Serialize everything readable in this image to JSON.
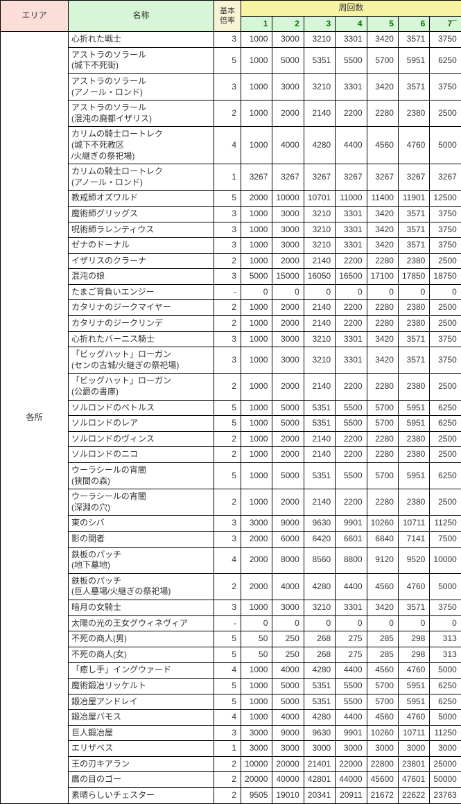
{
  "headers": {
    "area": "エリア",
    "name": "名称",
    "base": "基本\n倍率",
    "lap": "周回数",
    "laps": [
      "1",
      "2",
      "3",
      "4",
      "5",
      "6",
      "7¯"
    ]
  },
  "area_label": "各所",
  "colors": {
    "area_bg": "#fcded9",
    "name_bg": "#d6f6d7",
    "base_bg": "#f6f4d5",
    "lap_bg": "#f6f3a3",
    "lapn_bg": "#d6f6d7",
    "lapn_fg": "#0b6a02",
    "border": "#000000"
  },
  "rows": [
    {
      "name": "心折れた戦士",
      "base": "3",
      "v": [
        "1000",
        "3000",
        "3210",
        "3301",
        "3420",
        "3571",
        "3750"
      ]
    },
    {
      "name": "アストラのソラール\n(城下不死街)",
      "base": "5",
      "v": [
        "1000",
        "5000",
        "5351",
        "5500",
        "5700",
        "5951",
        "6250"
      ]
    },
    {
      "name": "アストラのソラール\n(アノール・ロンド)",
      "base": "3",
      "v": [
        "1000",
        "3000",
        "3210",
        "3301",
        "3420",
        "3571",
        "3750"
      ]
    },
    {
      "name": "アストラのソラール\n(混沌の廃都イザリス)",
      "base": "2",
      "v": [
        "1000",
        "2000",
        "2140",
        "2200",
        "2280",
        "2380",
        "2500"
      ]
    },
    {
      "name": "カリムの騎士ロートレク\n(城下不死教区\n/火継ぎの祭祀場)",
      "base": "4",
      "v": [
        "1000",
        "4000",
        "4280",
        "4400",
        "4560",
        "4760",
        "5000"
      ]
    },
    {
      "name": "カリムの騎士ロートレク\n(アノール・ロンド)",
      "base": "1",
      "v": [
        "3267",
        "3267",
        "3267",
        "3267",
        "3267",
        "3267",
        "3267"
      ]
    },
    {
      "name": "教戒師オズワルド",
      "base": "5",
      "v": [
        "2000",
        "10000",
        "10701",
        "11000",
        "11400",
        "11901",
        "12500"
      ]
    },
    {
      "name": "魔術師グリッグス",
      "base": "3",
      "v": [
        "1000",
        "3000",
        "3210",
        "3301",
        "3420",
        "3571",
        "3750"
      ]
    },
    {
      "name": "呪術師ラレンティウス",
      "base": "3",
      "v": [
        "1000",
        "3000",
        "3210",
        "3301",
        "3420",
        "3571",
        "3750"
      ]
    },
    {
      "name": "ゼナのドーナル",
      "base": "3",
      "v": [
        "1000",
        "3000",
        "3210",
        "3301",
        "3420",
        "3571",
        "3750"
      ]
    },
    {
      "name": "イザリスのクラーナ",
      "base": "2",
      "v": [
        "1000",
        "2000",
        "2140",
        "2200",
        "2280",
        "2380",
        "2500"
      ]
    },
    {
      "name": "混沌の娘",
      "base": "3",
      "v": [
        "5000",
        "15000",
        "16050",
        "16500",
        "17100",
        "17850",
        "18750"
      ]
    },
    {
      "name": "たまご背負いエンジー",
      "base": "-",
      "v": [
        "0",
        "0",
        "0",
        "0",
        "0",
        "0",
        "0"
      ]
    },
    {
      "name": "カタリナのジークマイヤー",
      "base": "2",
      "v": [
        "1000",
        "2000",
        "2140",
        "2200",
        "2280",
        "2380",
        "2500"
      ]
    },
    {
      "name": "カタリナのジークリンデ",
      "base": "2",
      "v": [
        "1000",
        "2000",
        "2140",
        "2200",
        "2280",
        "2380",
        "2500"
      ]
    },
    {
      "name": "心折れたバーニス騎士",
      "base": "3",
      "v": [
        "1000",
        "3000",
        "3210",
        "3301",
        "3420",
        "3571",
        "3750"
      ]
    },
    {
      "name": "「ビッグハット」ローガン\n(センの古城/火継ぎの祭祀場)",
      "base": "3",
      "v": [
        "1000",
        "3000",
        "3210",
        "3301",
        "3420",
        "3571",
        "3750"
      ]
    },
    {
      "name": "「ビッグハット」ローガン\n(公爵の書庫)",
      "base": "2",
      "v": [
        "1000",
        "2000",
        "2140",
        "2200",
        "2280",
        "2380",
        "2500"
      ]
    },
    {
      "name": "ソルロンドのペトルス",
      "base": "5",
      "v": [
        "1000",
        "5000",
        "5351",
        "5500",
        "5700",
        "5951",
        "6250"
      ]
    },
    {
      "name": "ソルロンドのレア",
      "base": "5",
      "v": [
        "1000",
        "5000",
        "5351",
        "5500",
        "5700",
        "5951",
        "6250"
      ]
    },
    {
      "name": "ソルロンドのヴィンス",
      "base": "2",
      "v": [
        "1000",
        "2000",
        "2140",
        "2200",
        "2280",
        "2380",
        "2500"
      ]
    },
    {
      "name": "ソルロンドのニコ",
      "base": "2",
      "v": [
        "1000",
        "2000",
        "2140",
        "2200",
        "2280",
        "2380",
        "2500"
      ]
    },
    {
      "name": "ウーラシールの宵闇\n(狭間の森)",
      "base": "5",
      "v": [
        "1000",
        "5000",
        "5351",
        "5500",
        "5700",
        "5951",
        "6250"
      ]
    },
    {
      "name": "ウーラシールの宵闇\n(深淵の穴)",
      "base": "2",
      "v": [
        "1000",
        "2000",
        "2140",
        "2200",
        "2280",
        "2380",
        "2500"
      ]
    },
    {
      "name": "東のシバ",
      "base": "3",
      "v": [
        "3000",
        "9000",
        "9630",
        "9901",
        "10260",
        "10711",
        "11250"
      ]
    },
    {
      "name": "影の間者",
      "base": "3",
      "v": [
        "2000",
        "6000",
        "6420",
        "6601",
        "6840",
        "7141",
        "7500"
      ]
    },
    {
      "name": "鉄板のパッチ\n(地下墓地)",
      "base": "4",
      "v": [
        "2000",
        "8000",
        "8560",
        "8800",
        "9120",
        "9520",
        "10000"
      ]
    },
    {
      "name": "鉄板のパッチ\n(巨人墓場/火継ぎの祭祀場)",
      "base": "2",
      "v": [
        "2000",
        "4000",
        "4280",
        "4400",
        "4560",
        "4760",
        "5000"
      ]
    },
    {
      "name": "暗月の女騎士",
      "base": "3",
      "v": [
        "1000",
        "3000",
        "3210",
        "3301",
        "3420",
        "3571",
        "3750"
      ]
    },
    {
      "name": "太陽の光の王女グウィネヴィア",
      "base": "-",
      "v": [
        "0",
        "0",
        "0",
        "0",
        "0",
        "0",
        "0"
      ]
    },
    {
      "name": "不死の商人(男)",
      "base": "5",
      "v": [
        "50",
        "250",
        "268",
        "275",
        "285",
        "298",
        "313"
      ]
    },
    {
      "name": "不死の商人(女)",
      "base": "5",
      "v": [
        "50",
        "250",
        "268",
        "275",
        "285",
        "298",
        "313"
      ]
    },
    {
      "name": "「癒し手」イングウァード",
      "base": "4",
      "v": [
        "1000",
        "4000",
        "4280",
        "4400",
        "4560",
        "4760",
        "5000"
      ]
    },
    {
      "name": "魔術鍛冶リッケルト",
      "base": "5",
      "v": [
        "1000",
        "5000",
        "5351",
        "5500",
        "5700",
        "5951",
        "6250"
      ]
    },
    {
      "name": "鍛冶屋アンドレイ",
      "base": "5",
      "v": [
        "1000",
        "5000",
        "5351",
        "5500",
        "5700",
        "5951",
        "6250"
      ]
    },
    {
      "name": "鍛冶屋バモス",
      "base": "4",
      "v": [
        "1000",
        "4000",
        "4280",
        "4400",
        "4560",
        "4760",
        "5000"
      ]
    },
    {
      "name": "巨人鍛冶屋",
      "base": "3",
      "v": [
        "3000",
        "9000",
        "9630",
        "9901",
        "10260",
        "10711",
        "11250"
      ]
    },
    {
      "name": "エリザベス",
      "base": "1",
      "v": [
        "3000",
        "3000",
        "3000",
        "3000",
        "3000",
        "3000",
        "3000"
      ]
    },
    {
      "name": "王の刃キアラン",
      "base": "2",
      "v": [
        "10000",
        "20000",
        "21401",
        "22000",
        "22800",
        "23801",
        "25000"
      ]
    },
    {
      "name": "鷹の目のゴー",
      "base": "2",
      "v": [
        "20000",
        "40000",
        "42801",
        "44000",
        "45600",
        "47601",
        "50000"
      ]
    },
    {
      "name": "素晴らしいチェスター",
      "base": "2",
      "v": [
        "9505",
        "19010",
        "20341",
        "20911",
        "21672",
        "22622",
        "23763"
      ]
    }
  ]
}
